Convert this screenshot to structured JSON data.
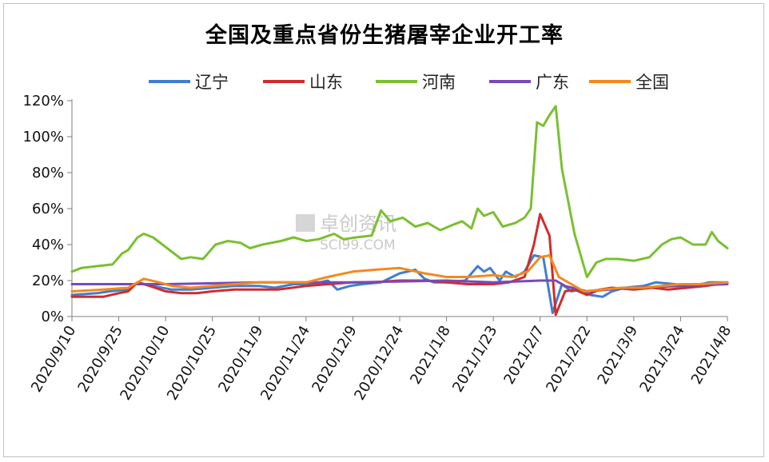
{
  "chart_data": {
    "type": "line",
    "title": "全国及重点省份生猪屠宰企业开工率",
    "watermark": {
      "line1": "卓创资讯",
      "line2": "SCI99.COM"
    },
    "x_ticks": [
      "2020/9/10",
      "2020/9/25",
      "2020/10/10",
      "2020/10/25",
      "2020/11/9",
      "2020/11/24",
      "2020/12/9",
      "2020/12/24",
      "2021/1/8",
      "2021/1/23",
      "2021/2/7",
      "2021/2/22",
      "2021/3/9",
      "2021/3/24",
      "2021/4/8"
    ],
    "y_ticks": [
      "0%",
      "20%",
      "40%",
      "60%",
      "80%",
      "100%",
      "120%"
    ],
    "ylim": [
      0,
      120
    ],
    "xlim": [
      "2020-09-10",
      "2021-04-08"
    ],
    "grid": false,
    "legend_position": "top",
    "series": [
      {
        "name": "辽宁",
        "color": "#3f7fd0",
        "points": [
          [
            "2020-09-10",
            12
          ],
          [
            "2020-09-18",
            13
          ],
          [
            "2020-09-22",
            14
          ],
          [
            "2020-09-28",
            15
          ],
          [
            "2020-10-01",
            19
          ],
          [
            "2020-10-06",
            17
          ],
          [
            "2020-10-12",
            15
          ],
          [
            "2020-10-18",
            15
          ],
          [
            "2020-10-25",
            16
          ],
          [
            "2020-11-01",
            17
          ],
          [
            "2020-11-09",
            17
          ],
          [
            "2020-11-14",
            16
          ],
          [
            "2020-11-20",
            18
          ],
          [
            "2020-11-26",
            18
          ],
          [
            "2020-12-01",
            20
          ],
          [
            "2020-12-04",
            15
          ],
          [
            "2020-12-08",
            17
          ],
          [
            "2020-12-12",
            18
          ],
          [
            "2020-12-18",
            19
          ],
          [
            "2020-12-24",
            24
          ],
          [
            "2020-12-29",
            26
          ],
          [
            "2021-01-01",
            21
          ],
          [
            "2021-01-04",
            19
          ],
          [
            "2021-01-08",
            19
          ],
          [
            "2021-01-14",
            20
          ],
          [
            "2021-01-18",
            28
          ],
          [
            "2021-01-20",
            25
          ],
          [
            "2021-01-22",
            27
          ],
          [
            "2021-01-25",
            20
          ],
          [
            "2021-01-27",
            25
          ],
          [
            "2021-01-30",
            22
          ],
          [
            "2021-02-02",
            25
          ],
          [
            "2021-02-05",
            34
          ],
          [
            "2021-02-08",
            33
          ],
          [
            "2021-02-11",
            2
          ],
          [
            "2021-02-14",
            18
          ],
          [
            "2021-02-17",
            14
          ],
          [
            "2021-02-20",
            15
          ],
          [
            "2021-02-23",
            12
          ],
          [
            "2021-02-27",
            11
          ],
          [
            "2021-03-02",
            14
          ],
          [
            "2021-03-06",
            16
          ],
          [
            "2021-03-12",
            17
          ],
          [
            "2021-03-16",
            19
          ],
          [
            "2021-03-22",
            18
          ],
          [
            "2021-03-28",
            17
          ],
          [
            "2021-04-02",
            19
          ],
          [
            "2021-04-08",
            19
          ]
        ]
      },
      {
        "name": "山东",
        "color": "#d02c2c",
        "points": [
          [
            "2020-09-10",
            11
          ],
          [
            "2020-09-15",
            11
          ],
          [
            "2020-09-20",
            11
          ],
          [
            "2020-09-25",
            13
          ],
          [
            "2020-09-28",
            14
          ],
          [
            "2020-10-01",
            19
          ],
          [
            "2020-10-05",
            17
          ],
          [
            "2020-10-10",
            14
          ],
          [
            "2020-10-15",
            13
          ],
          [
            "2020-10-20",
            13
          ],
          [
            "2020-10-25",
            14
          ],
          [
            "2020-11-01",
            15
          ],
          [
            "2020-11-09",
            15
          ],
          [
            "2020-11-15",
            15
          ],
          [
            "2020-11-24",
            17
          ],
          [
            "2020-12-01",
            18
          ],
          [
            "2020-12-09",
            19
          ],
          [
            "2020-12-15",
            19
          ],
          [
            "2020-12-24",
            20
          ],
          [
            "2021-01-01",
            20
          ],
          [
            "2021-01-08",
            19
          ],
          [
            "2021-01-15",
            18
          ],
          [
            "2021-01-23",
            18
          ],
          [
            "2021-01-28",
            19
          ],
          [
            "2021-02-02",
            22
          ],
          [
            "2021-02-05",
            40
          ],
          [
            "2021-02-07",
            57
          ],
          [
            "2021-02-10",
            45
          ],
          [
            "2021-02-12",
            1
          ],
          [
            "2021-02-15",
            14
          ],
          [
            "2021-02-18",
            15
          ],
          [
            "2021-02-22",
            12
          ],
          [
            "2021-02-26",
            15
          ],
          [
            "2021-03-02",
            16
          ],
          [
            "2021-03-09",
            15
          ],
          [
            "2021-03-15",
            16
          ],
          [
            "2021-03-20",
            15
          ],
          [
            "2021-03-26",
            16
          ],
          [
            "2021-04-01",
            17
          ],
          [
            "2021-04-08",
            19
          ]
        ]
      },
      {
        "name": "河南",
        "color": "#7bbf32",
        "points": [
          [
            "2020-09-10",
            25
          ],
          [
            "2020-09-13",
            27
          ],
          [
            "2020-09-18",
            28
          ],
          [
            "2020-09-23",
            29
          ],
          [
            "2020-09-26",
            35
          ],
          [
            "2020-09-28",
            37
          ],
          [
            "2020-10-01",
            44
          ],
          [
            "2020-10-03",
            46
          ],
          [
            "2020-10-06",
            44
          ],
          [
            "2020-10-12",
            36
          ],
          [
            "2020-10-15",
            32
          ],
          [
            "2020-10-18",
            33
          ],
          [
            "2020-10-22",
            32
          ],
          [
            "2020-10-26",
            40
          ],
          [
            "2020-10-30",
            42
          ],
          [
            "2020-11-03",
            41
          ],
          [
            "2020-11-06",
            38
          ],
          [
            "2020-11-10",
            40
          ],
          [
            "2020-11-16",
            42
          ],
          [
            "2020-11-20",
            44
          ],
          [
            "2020-11-24",
            42
          ],
          [
            "2020-11-28",
            43
          ],
          [
            "2020-12-03",
            46
          ],
          [
            "2020-12-06",
            43
          ],
          [
            "2020-12-10",
            44
          ],
          [
            "2020-12-15",
            45
          ],
          [
            "2020-12-18",
            59
          ],
          [
            "2020-12-21",
            53
          ],
          [
            "2020-12-25",
            55
          ],
          [
            "2020-12-29",
            50
          ],
          [
            "2021-01-02",
            52
          ],
          [
            "2021-01-06",
            48
          ],
          [
            "2021-01-10",
            51
          ],
          [
            "2021-01-13",
            53
          ],
          [
            "2021-01-16",
            49
          ],
          [
            "2021-01-18",
            60
          ],
          [
            "2021-01-20",
            56
          ],
          [
            "2021-01-23",
            58
          ],
          [
            "2021-01-26",
            50
          ],
          [
            "2021-01-30",
            52
          ],
          [
            "2021-02-02",
            55
          ],
          [
            "2021-02-04",
            60
          ],
          [
            "2021-02-06",
            108
          ],
          [
            "2021-02-08",
            106
          ],
          [
            "2021-02-10",
            112
          ],
          [
            "2021-02-12",
            117
          ],
          [
            "2021-02-14",
            82
          ],
          [
            "2021-02-18",
            46
          ],
          [
            "2021-02-22",
            22
          ],
          [
            "2021-02-25",
            30
          ],
          [
            "2021-02-28",
            32
          ],
          [
            "2021-03-04",
            32
          ],
          [
            "2021-03-09",
            31
          ],
          [
            "2021-03-14",
            33
          ],
          [
            "2021-03-18",
            40
          ],
          [
            "2021-03-21",
            43
          ],
          [
            "2021-03-24",
            44
          ],
          [
            "2021-03-28",
            40
          ],
          [
            "2021-04-01",
            40
          ],
          [
            "2021-04-03",
            47
          ],
          [
            "2021-04-05",
            42
          ],
          [
            "2021-04-08",
            38
          ]
        ]
      },
      {
        "name": "广东",
        "color": "#7a49b8",
        "points": [
          [
            "2020-09-10",
            18
          ],
          [
            "2020-10-10",
            18
          ],
          [
            "2020-11-09",
            19
          ],
          [
            "2020-12-09",
            19
          ],
          [
            "2021-01-08",
            20
          ],
          [
            "2021-01-23",
            19
          ],
          [
            "2021-02-07",
            20
          ],
          [
            "2021-02-12",
            20
          ],
          [
            "2021-02-15",
            17
          ],
          [
            "2021-02-22",
            14
          ],
          [
            "2021-03-09",
            16
          ],
          [
            "2021-03-24",
            17
          ],
          [
            "2021-04-08",
            18
          ]
        ]
      },
      {
        "name": "全国",
        "color": "#f28a1c",
        "points": [
          [
            "2020-09-10",
            14
          ],
          [
            "2020-09-20",
            15
          ],
          [
            "2020-09-28",
            16
          ],
          [
            "2020-10-03",
            21
          ],
          [
            "2020-10-08",
            19
          ],
          [
            "2020-10-12",
            17
          ],
          [
            "2020-10-18",
            16
          ],
          [
            "2020-10-25",
            17
          ],
          [
            "2020-11-01",
            18
          ],
          [
            "2020-11-09",
            19
          ],
          [
            "2020-11-24",
            19
          ],
          [
            "2020-12-01",
            22
          ],
          [
            "2020-12-09",
            25
          ],
          [
            "2020-12-16",
            26
          ],
          [
            "2020-12-24",
            27
          ],
          [
            "2021-01-01",
            24
          ],
          [
            "2021-01-08",
            22
          ],
          [
            "2021-01-15",
            22
          ],
          [
            "2021-01-23",
            23
          ],
          [
            "2021-01-29",
            22
          ],
          [
            "2021-02-03",
            25
          ],
          [
            "2021-02-07",
            33
          ],
          [
            "2021-02-10",
            34
          ],
          [
            "2021-02-13",
            22
          ],
          [
            "2021-02-17",
            18
          ],
          [
            "2021-02-21",
            14
          ],
          [
            "2021-02-27",
            15
          ],
          [
            "2021-03-05",
            16
          ],
          [
            "2021-03-12",
            16
          ],
          [
            "2021-03-18",
            17
          ],
          [
            "2021-03-24",
            18
          ],
          [
            "2021-03-30",
            18
          ],
          [
            "2021-04-08",
            19
          ]
        ]
      }
    ]
  }
}
